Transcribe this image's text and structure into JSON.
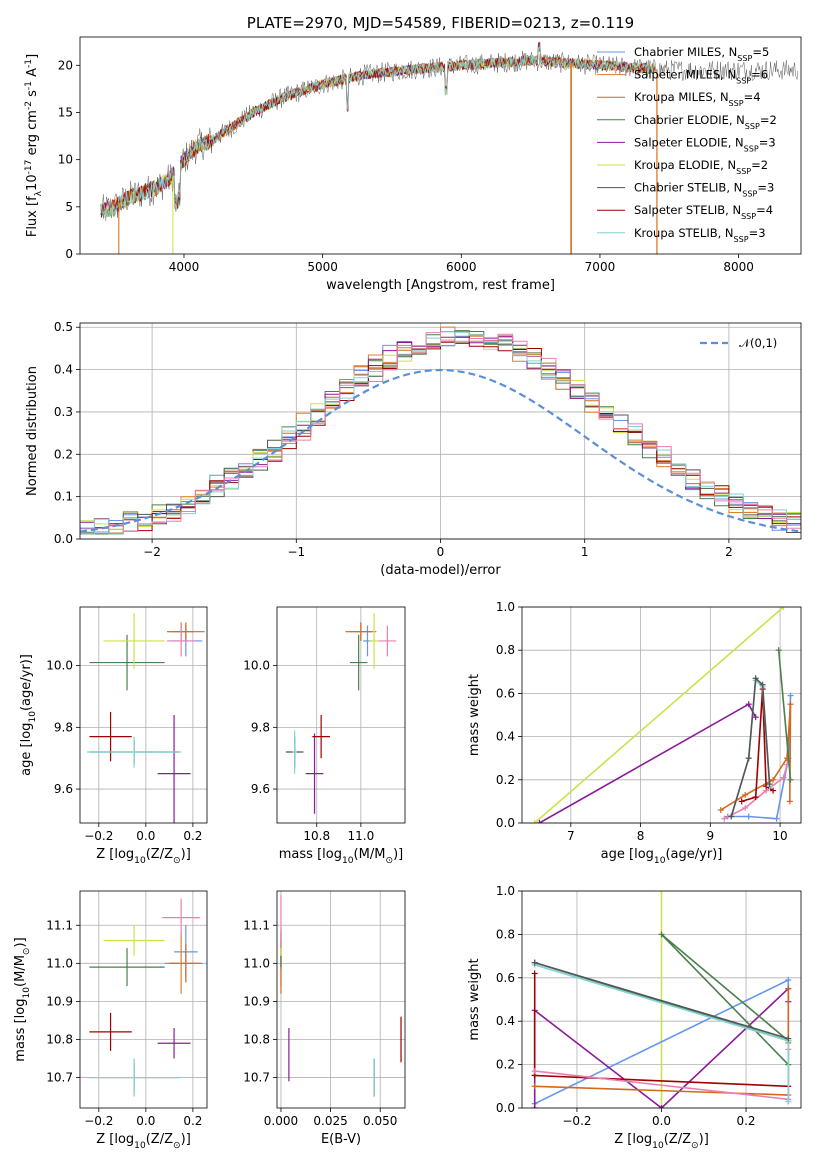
{
  "colors": {
    "series": [
      "#6495ed",
      "#e07b2f",
      "#d2691e",
      "#4b7f4b",
      "#8b1a9b",
      "#cce24a",
      "#555555",
      "#a00000",
      "#7fd3d3",
      "#e87fb0",
      "#8c8c8c"
    ],
    "nfit": "#5b8fd6"
  },
  "chart_data": [
    {
      "panel": "spectrum",
      "type": "line",
      "title": "PLATE=2970, MJD=54589, FIBERID=0213, z=0.119",
      "xlabel": "wavelength [Angstrom, rest frame]",
      "ylabel": "Flux [f$_\\lambda$10$^{-17}$ erg cm$^{-2}$ s$^{-1}$ A$^{-1}$]",
      "xlim": [
        3250,
        8450
      ],
      "ylim": [
        0,
        23
      ],
      "xticks": [
        4000,
        5000,
        6000,
        7000,
        8000
      ],
      "yticks": [
        0,
        5,
        10,
        15,
        20
      ],
      "grid": false,
      "legend_loc": "upper right",
      "series": [
        {
          "name": "Chabrier MILES, N$_{SSP}$=5"
        },
        {
          "name": "Salpeter MILES, N$_{SSP}$=6"
        },
        {
          "name": "Kroupa MILES, N$_{SSP}$=4"
        },
        {
          "name": "Chabrier ELODIE, N$_{SSP}$=2"
        },
        {
          "name": "Salpeter ELODIE, N$_{SSP}$=3"
        },
        {
          "name": "Kroupa ELODIE, N$_{SSP}$=2"
        },
        {
          "name": "Chabrier STELIB, N$_{SSP}$=3"
        },
        {
          "name": "Salpeter STELIB, N$_{SSP}$=4"
        },
        {
          "name": "Kroupa STELIB, N$_{SSP}$=3"
        }
      ],
      "continuum": {
        "x": [
          3400,
          3500,
          3600,
          3700,
          3800,
          3900,
          4000,
          4100,
          4200,
          4300,
          4500,
          4700,
          5000,
          5300,
          5600,
          6000,
          6500,
          7000,
          7500
        ],
        "y": [
          4.5,
          5,
          6,
          6.5,
          7,
          8,
          10,
          11.5,
          12,
          13,
          15,
          16.5,
          18,
          19,
          19.5,
          20,
          20.5,
          20,
          19.5
        ]
      }
    },
    {
      "panel": "residuals",
      "type": "step",
      "xlabel": "(data-model)/error",
      "ylabel": "Normed distribution",
      "xlim": [
        -2.5,
        2.5
      ],
      "ylim": [
        0,
        0.51
      ],
      "xticks": [
        -2,
        -1,
        0,
        1,
        2
      ],
      "yticks": [
        0.0,
        0.1,
        0.2,
        0.3,
        0.4,
        0.5
      ],
      "grid": true,
      "legend_loc": "upper right",
      "reference": {
        "name": "$\\mathcal{N}(0,1)$",
        "mu": 0,
        "sigma": 1
      }
    },
    {
      "panel": "age-vs-Z",
      "type": "errorbar",
      "xlabel": "Z [log$_{10}$(Z/Z$_\\odot$)]",
      "ylabel": "age  [log$_{10}$(age/yr)]",
      "xlim": [
        -0.28,
        0.26
      ],
      "ylim": [
        9.49,
        10.19
      ],
      "xticks": [
        -0.2,
        0.0,
        0.2
      ],
      "yticks": [
        9.6,
        9.8,
        10.0
      ],
      "grid": true,
      "points": [
        {
          "x": 0.17,
          "y": 10.08,
          "xe": 0.07,
          "ye": 0.05,
          "c": 0
        },
        {
          "x": 0.15,
          "y": 10.11,
          "xe": 0.05,
          "ye": 0.03,
          "c": 1
        },
        {
          "x": 0.17,
          "y": 10.11,
          "xe": 0.08,
          "ye": 0.03,
          "c": 2
        },
        {
          "x": -0.08,
          "y": 10.01,
          "xe": 0.16,
          "ye": 0.09,
          "c": 3
        },
        {
          "x": 0.12,
          "y": 9.65,
          "xe": 0.07,
          "ye": 0.19,
          "c": 4
        },
        {
          "x": -0.05,
          "y": 10.08,
          "xe": 0.13,
          "ye": 0.09,
          "c": 5
        },
        {
          "x": -0.05,
          "y": 9.72,
          "xe": 0.19,
          "ye": 0.04,
          "c": 6
        },
        {
          "x": -0.15,
          "y": 9.77,
          "xe": 0.09,
          "ye": 0.08,
          "c": 7
        },
        {
          "x": -0.05,
          "y": 9.72,
          "xe": 0.2,
          "ye": 0.05,
          "c": 8
        },
        {
          "x": 0.15,
          "y": 10.08,
          "xe": 0.06,
          "ye": 0.05,
          "c": 9
        }
      ]
    },
    {
      "panel": "age-vs-mass",
      "type": "errorbar",
      "xlabel": "mass [log$_{10}$(M/M$_\\odot$)]",
      "ylabel": "",
      "xlim": [
        10.62,
        11.2
      ],
      "ylim": [
        9.49,
        10.19
      ],
      "xticks": [
        10.8,
        11.0
      ],
      "yticks": [
        9.6,
        9.8,
        10.0
      ],
      "grid": true,
      "points": [
        {
          "x": 11.03,
          "y": 10.08,
          "xe": 0.02,
          "ye": 0.05,
          "c": 0
        },
        {
          "x": 11.0,
          "y": 10.11,
          "xe": 0.05,
          "ye": 0.03,
          "c": 1
        },
        {
          "x": 11.0,
          "y": 10.11,
          "xe": 0.07,
          "ye": 0.03,
          "c": 2
        },
        {
          "x": 10.99,
          "y": 10.01,
          "xe": 0.04,
          "ye": 0.09,
          "c": 3
        },
        {
          "x": 10.79,
          "y": 9.65,
          "xe": 0.04,
          "ye": 0.13,
          "c": 4
        },
        {
          "x": 11.06,
          "y": 10.08,
          "xe": 0.02,
          "ye": 0.09,
          "c": 5
        },
        {
          "x": 10.7,
          "y": 9.72,
          "xe": 0.04,
          "ye": 0.05,
          "c": 6
        },
        {
          "x": 10.82,
          "y": 9.77,
          "xe": 0.04,
          "ye": 0.07,
          "c": 7
        },
        {
          "x": 10.7,
          "y": 9.72,
          "xe": 0.01,
          "ye": 0.07,
          "c": 8
        },
        {
          "x": 11.12,
          "y": 10.08,
          "xe": 0.04,
          "ye": 0.05,
          "c": 9
        }
      ]
    },
    {
      "panel": "massweight-vs-age",
      "type": "line",
      "xlabel": "age  [log$_{10}$(age/yr)]",
      "ylabel": "mass weight",
      "xlim": [
        6.3,
        10.3
      ],
      "ylim": [
        0,
        1
      ],
      "xticks": [
        7,
        8,
        9,
        10
      ],
      "yticks": [
        0.0,
        0.2,
        0.4,
        0.6,
        0.8,
        1.0
      ],
      "grid": true,
      "series": [
        {
          "c": 5,
          "x": [
            6.48,
            10.05
          ],
          "y": [
            0.0,
            1.0
          ]
        },
        {
          "c": 4,
          "x": [
            6.55,
            9.55,
            9.65
          ],
          "y": [
            0.0,
            0.55,
            0.49
          ]
        },
        {
          "c": 0,
          "x": [
            9.25,
            9.55,
            9.95,
            10.12,
            10.15
          ],
          "y": [
            0.03,
            0.03,
            0.02,
            0.3,
            0.59
          ]
        },
        {
          "c": 2,
          "x": [
            9.15,
            9.5,
            9.9,
            10.1,
            10.15,
            10.14
          ],
          "y": [
            0.06,
            0.13,
            0.2,
            0.3,
            0.55,
            0.1
          ]
        },
        {
          "c": 9,
          "x": [
            9.2,
            9.5,
            9.8,
            10.05,
            10.1
          ],
          "y": [
            0.02,
            0.07,
            0.15,
            0.21,
            0.27
          ]
        },
        {
          "c": 7,
          "x": [
            9.45,
            9.65,
            9.75,
            9.8,
            9.9
          ],
          "y": [
            0.1,
            0.12,
            0.62,
            0.17,
            0.15
          ]
        },
        {
          "c": 8,
          "x": [
            9.3,
            9.55,
            9.65,
            9.75,
            9.85
          ],
          "y": [
            0.03,
            0.3,
            0.66,
            0.63,
            0.17
          ]
        },
        {
          "c": 6,
          "x": [
            9.3,
            9.55,
            9.65,
            9.75,
            9.85
          ],
          "y": [
            0.03,
            0.3,
            0.67,
            0.64,
            0.18
          ]
        },
        {
          "c": 3,
          "x": [
            9.98,
            10.15
          ],
          "y": [
            0.8,
            0.2
          ]
        }
      ]
    },
    {
      "panel": "mass-vs-Z",
      "type": "errorbar",
      "xlabel": "Z [log$_{10}$(Z/Z$_\\odot$)]",
      "ylabel": "mass [log$_{10}$(M/M$_\\odot$)]",
      "xlim": [
        -0.28,
        0.26
      ],
      "ylim": [
        10.62,
        11.19
      ],
      "xticks": [
        -0.2,
        0.0,
        0.2
      ],
      "yticks": [
        10.7,
        10.8,
        10.9,
        11.0,
        11.1
      ],
      "grid": true,
      "points": [
        {
          "x": 0.17,
          "y": 11.03,
          "xe": 0.05,
          "ye": 0.07,
          "c": 0
        },
        {
          "x": 0.15,
          "y": 11.0,
          "xe": 0.07,
          "ye": 0.08,
          "c": 1
        },
        {
          "x": 0.17,
          "y": 11.0,
          "xe": 0.07,
          "ye": 0.05,
          "c": 2
        },
        {
          "x": -0.08,
          "y": 10.99,
          "xe": 0.16,
          "ye": 0.05,
          "c": 3
        },
        {
          "x": 0.12,
          "y": 10.79,
          "xe": 0.07,
          "ye": 0.04,
          "c": 4
        },
        {
          "x": -0.05,
          "y": 11.06,
          "xe": 0.13,
          "ye": 0.04,
          "c": 5
        },
        {
          "x": -0.05,
          "y": 10.7,
          "xe": 0.19,
          "ye": 0.04,
          "c": 6
        },
        {
          "x": -0.15,
          "y": 10.82,
          "xe": 0.09,
          "ye": 0.05,
          "c": 7
        },
        {
          "x": -0.05,
          "y": 10.7,
          "xe": 0.2,
          "ye": 0.05,
          "c": 8
        },
        {
          "x": 0.15,
          "y": 11.12,
          "xe": 0.08,
          "ye": 0.05,
          "c": 9
        }
      ]
    },
    {
      "panel": "mass-vs-EBV",
      "type": "errorbar",
      "xlabel": "E(B-V)",
      "ylabel": "",
      "xlim": [
        -0.002,
        0.0625
      ],
      "ylim": [
        10.62,
        11.19
      ],
      "xticks": [
        0.0,
        0.025,
        0.05
      ],
      "xticklabels": [
        "0.000",
        "0.025",
        "0.050"
      ],
      "yticks": [
        10.7,
        10.8,
        10.9,
        11.0,
        11.1
      ],
      "grid": true,
      "points": [
        {
          "x": 0.0,
          "y": 11.03,
          "xe": 0.0,
          "ye": 0.05,
          "c": 0
        },
        {
          "x": 0.0,
          "y": 11.0,
          "xe": 0.0,
          "ye": 0.06,
          "c": 1
        },
        {
          "x": 0.0,
          "y": 10.97,
          "xe": 0.0,
          "ye": 0.05,
          "c": 2
        },
        {
          "x": 0.0,
          "y": 11.04,
          "xe": 0.0,
          "ye": 0.05,
          "c": 3
        },
        {
          "x": 0.004,
          "y": 10.76,
          "xe": 0.0,
          "ye": 0.07,
          "c": 4
        },
        {
          "x": 0.0,
          "y": 11.05,
          "xe": 0.0,
          "ye": 0.03,
          "c": 5
        },
        {
          "x": 0.047,
          "y": 10.7,
          "xe": 0.0,
          "ye": 0.05,
          "c": 6
        },
        {
          "x": 0.0605,
          "y": 10.8,
          "xe": 0.0,
          "ye": 0.06,
          "c": 7
        },
        {
          "x": 0.047,
          "y": 10.7,
          "xe": 0.0,
          "ye": 0.05,
          "c": 8
        },
        {
          "x": 0.0,
          "y": 11.11,
          "xe": 0.0,
          "ye": 0.07,
          "c": 9
        }
      ]
    },
    {
      "panel": "massweight-vs-Z",
      "type": "line",
      "xlabel": "Z [log$_{10}$(Z/Z$_\\odot$)]",
      "ylabel": "mass weight",
      "xlim": [
        -0.33,
        0.33
      ],
      "ylim": [
        0,
        1
      ],
      "xticks": [
        -0.2,
        0.0,
        0.2
      ],
      "yticks": [
        0.0,
        0.2,
        0.4,
        0.6,
        0.8,
        1.0
      ],
      "grid": true,
      "series": [
        {
          "c": 5,
          "x": [
            0.0,
            0.0
          ],
          "y": [
            0.0,
            1.0
          ]
        },
        {
          "c": 0,
          "x": [
            -0.3,
            0.3,
            0.3
          ],
          "y": [
            0.02,
            0.59,
            0.03
          ]
        },
        {
          "c": 4,
          "x": [
            -0.3,
            -0.3,
            0.0,
            0.3,
            0.3
          ],
          "y": [
            0.0,
            0.45,
            0.0,
            0.55,
            0.49
          ]
        },
        {
          "c": 7,
          "x": [
            -0.3,
            -0.3,
            -0.3,
            0.3
          ],
          "y": [
            0.62,
            0.15,
            0.15,
            0.1
          ]
        },
        {
          "c": 2,
          "x": [
            -0.3,
            0.3,
            0.3,
            0.3
          ],
          "y": [
            0.1,
            0.06,
            0.3,
            0.55
          ]
        },
        {
          "c": 9,
          "x": [
            -0.3,
            0.3,
            0.3
          ],
          "y": [
            0.17,
            0.04,
            0.27
          ]
        },
        {
          "c": 3,
          "x": [
            -0.3,
            0.3,
            0.0,
            0.3
          ],
          "y": [
            0.67,
            0.31,
            0.8,
            0.2
          ]
        },
        {
          "c": 8,
          "x": [
            -0.3,
            0.3,
            0.3
          ],
          "y": [
            0.66,
            0.31,
            0.03
          ]
        },
        {
          "c": 6,
          "x": [
            -0.3,
            0.3
          ],
          "y": [
            0.67,
            0.32
          ]
        }
      ]
    }
  ]
}
